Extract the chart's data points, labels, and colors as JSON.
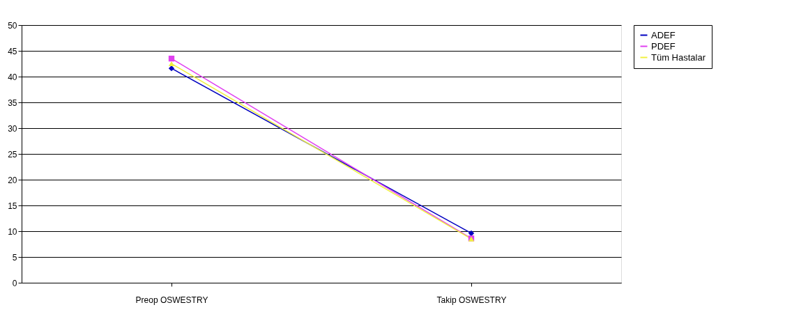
{
  "chart_data": {
    "type": "line",
    "categories": [
      "Preop OSWESTRY",
      "Takip OSWESTRY"
    ],
    "series": [
      {
        "name": "ADEF",
        "color": "#0000c0",
        "marker": "diamond",
        "values": [
          41.6,
          9.6
        ]
      },
      {
        "name": "PDEF",
        "color": "#e040f0",
        "marker": "square",
        "values": [
          43.5,
          8.6
        ]
      },
      {
        "name": "Tüm Hastalar",
        "color": "#f0f040",
        "marker": "triangle",
        "values": [
          42.5,
          8.5
        ]
      }
    ],
    "ylim": [
      0,
      50
    ],
    "yticks": [
      0,
      5,
      10,
      15,
      20,
      25,
      30,
      35,
      40,
      45,
      50
    ],
    "grid": "y",
    "legend": "right"
  }
}
